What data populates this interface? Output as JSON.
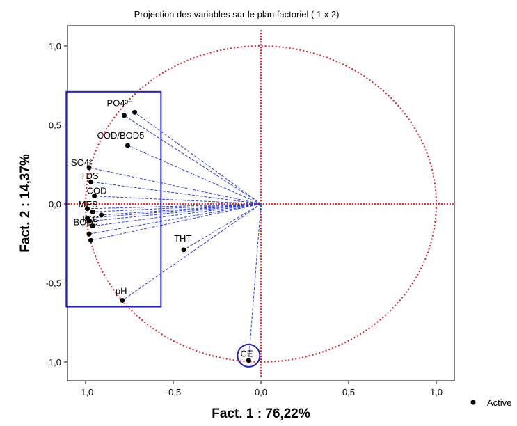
{
  "chart_data": {
    "type": "scatter",
    "title": "Projection des variables sur le plan factoriel ( 1 x 2)",
    "xlabel": "Fact. 1  : 76,22%",
    "ylabel": "Fact. 2  : 14,37%",
    "xlim": [
      -1.1,
      1.1
    ],
    "ylim": [
      -1.1,
      1.1
    ],
    "x_ticks": [
      -1.0,
      -0.5,
      0.0,
      0.5,
      1.0
    ],
    "y_ticks": [
      -1.0,
      -0.5,
      0.0,
      0.5,
      1.0
    ],
    "x_tick_labels": [
      "-1,0",
      "-0,5",
      "0,0",
      "0,5",
      "1,0"
    ],
    "y_tick_labels": [
      "-1,0",
      "-0,5",
      "0,0",
      "0,5",
      "1,0"
    ],
    "grid": false,
    "legend_position": "bottom-right",
    "legend": [
      {
        "label": "Active",
        "marker": "filled-circle",
        "color": "#000000"
      }
    ],
    "unit_circle": {
      "color": "#e02020",
      "style": "dotted"
    },
    "reference_lines": {
      "x": 0,
      "y": 0,
      "color": "#e02020",
      "style": "dotted"
    },
    "vector_color": "#2b3fd6",
    "highlight_color": "#2020c0",
    "points": [
      {
        "label": "PO4³⁻",
        "x": -0.72,
        "y": 0.58,
        "show_label": true
      },
      {
        "label": "",
        "x": -0.78,
        "y": 0.56,
        "show_label": false
      },
      {
        "label": "COD/BOD5",
        "x": -0.76,
        "y": 0.37,
        "show_label": true
      },
      {
        "label": "SO4²⁻",
        "x": -0.98,
        "y": 0.23,
        "show_label": true
      },
      {
        "label": "TDS",
        "x": -0.97,
        "y": 0.14,
        "show_label": true
      },
      {
        "label": "COD",
        "x": -0.95,
        "y": 0.05,
        "show_label": true
      },
      {
        "label": "MES",
        "x": -0.99,
        "y": -0.03,
        "show_label": true
      },
      {
        "label": "",
        "x": -0.96,
        "y": -0.05,
        "show_label": false
      },
      {
        "label": "",
        "x": -0.91,
        "y": -0.07,
        "show_label": false
      },
      {
        "label": "BOD5",
        "x": -0.99,
        "y": -0.09,
        "show_label": true
      },
      {
        "label": "",
        "x": -0.98,
        "y": -0.11,
        "show_label": false
      },
      {
        "label": "TKC",
        "x": -0.96,
        "y": -0.14,
        "show_label": true
      },
      {
        "label": "",
        "x": -0.98,
        "y": -0.19,
        "show_label": false
      },
      {
        "label": "",
        "x": -0.97,
        "y": -0.23,
        "show_label": false
      },
      {
        "label": "THT",
        "x": -0.44,
        "y": -0.29,
        "show_label": true
      },
      {
        "label": "pH",
        "x": -0.79,
        "y": -0.61,
        "show_label": true
      },
      {
        "label": "CE",
        "x": -0.07,
        "y": -0.99,
        "show_label": true
      }
    ],
    "highlight_box": {
      "x_range": [
        -1.11,
        -0.57
      ],
      "y_range": [
        -0.65,
        0.71
      ]
    },
    "highlight_circle": {
      "x": -0.07,
      "y": -0.96
    }
  }
}
